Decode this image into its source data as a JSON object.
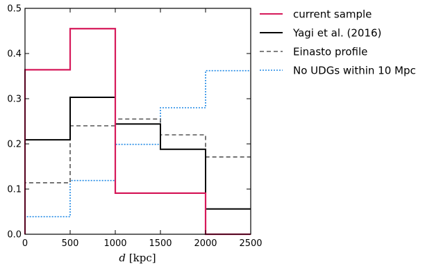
{
  "chart_data": {
    "type": "step",
    "bin_edges": [
      0,
      500,
      1000,
      1500,
      2000,
      2500
    ],
    "xlim": [
      0,
      2500
    ],
    "ylim": [
      0,
      0.5
    ],
    "xticks": [
      0,
      500,
      1000,
      1500,
      2000,
      2500
    ],
    "yticks": [
      0.0,
      0.1,
      0.2,
      0.3,
      0.4,
      0.5
    ],
    "xtick_labels": [
      "0",
      "500",
      "1000",
      "1500",
      "2000",
      "2500"
    ],
    "ytick_labels": [
      "0.0",
      "0.1",
      "0.2",
      "0.3",
      "0.4",
      "0.5"
    ],
    "xlabel": "d [kpc]",
    "ylabel": "",
    "grid": false,
    "legend_position": "outside-right",
    "series": [
      {
        "name": "current sample",
        "values": [
          0.364,
          0.455,
          0.091,
          0.091,
          0.0
        ],
        "color": "#d6195a",
        "style": "solid"
      },
      {
        "name": "Yagi et al. (2016)",
        "values": [
          0.209,
          0.303,
          0.244,
          0.188,
          0.056
        ],
        "color": "#000000",
        "style": "solid"
      },
      {
        "name": "Einasto profile",
        "values": [
          0.114,
          0.24,
          0.255,
          0.22,
          0.171
        ],
        "color": "#555555",
        "style": "dashed"
      },
      {
        "name": "No UDGs within 10 Mpc",
        "values": [
          0.039,
          0.119,
          0.199,
          0.28,
          0.362
        ],
        "color": "#1e88e5",
        "style": "dotted"
      }
    ]
  }
}
